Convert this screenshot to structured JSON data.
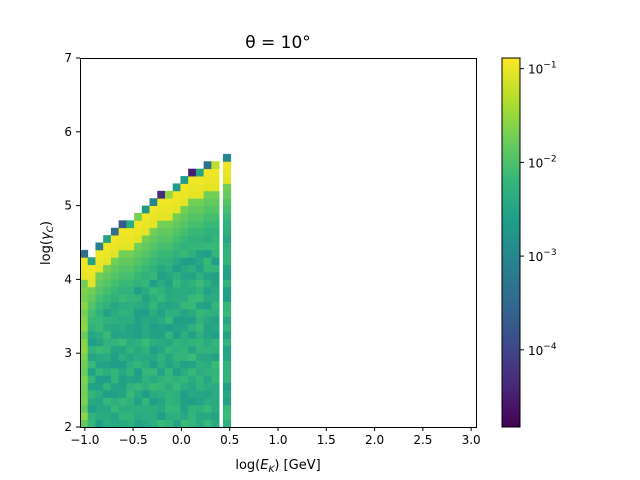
{
  "chart_data": {
    "type": "heatmap",
    "title": "θ = 10°",
    "xlabel": "log(E_K) [GeV]",
    "ylabel": "log(γ_C)",
    "xlim": [
      -1.05,
      3.05
    ],
    "ylim": [
      2,
      7
    ],
    "x_ticks": [
      -1.0,
      -0.5,
      0.0,
      0.5,
      1.0,
      1.5,
      2.0,
      2.5,
      3.0
    ],
    "x_tick_labels": [
      "−1.0",
      "−0.5",
      "0.0",
      "0.5",
      "1.0",
      "1.5",
      "2.0",
      "2.5",
      "3.0"
    ],
    "y_ticks": [
      2,
      3,
      4,
      5,
      6,
      7
    ],
    "y_tick_labels": [
      "2",
      "3",
      "4",
      "5",
      "6",
      "7"
    ],
    "colorbar": {
      "scale": "log",
      "vmin": 1.5e-05,
      "vmax": 0.13,
      "ticks": [
        0.0001,
        0.001,
        0.01,
        0.1
      ],
      "tick_labels": [
        "10",
        "10",
        "10",
        "10"
      ],
      "tick_exponents": [
        "−4",
        "−3",
        "−2",
        "−1"
      ],
      "colormap": "viridis"
    },
    "grid": false,
    "cells": {
      "x_start": -1.05,
      "x_end": 0.55,
      "x_step": 0.08,
      "y_step": 0.1,
      "y_bottom": 2.0,
      "columns": [
        {
          "x": -1.01,
          "top": 4.35,
          "top_value": 0.0004
        },
        {
          "x": -0.93,
          "top": 4.25,
          "top_value": 0.003
        },
        {
          "x": -0.85,
          "top": 4.45,
          "top_value": 0.0008
        },
        {
          "x": -0.77,
          "top": 4.55,
          "top_value": 0.003
        },
        {
          "x": -0.69,
          "top": 4.65,
          "top_value": 0.0004
        },
        {
          "x": -0.61,
          "top": 4.75,
          "top_value": 0.0002
        },
        {
          "x": -0.53,
          "top": 4.75,
          "top_value": 0.004
        },
        {
          "x": -0.45,
          "top": 4.85,
          "top_value": 0.02
        },
        {
          "x": -0.37,
          "top": 4.95,
          "top_value": 0.002
        },
        {
          "x": -0.29,
          "top": 5.05,
          "top_value": 0.001
        },
        {
          "x": -0.21,
          "top": 5.15,
          "top_value": 5e-05
        },
        {
          "x": -0.13,
          "top": 5.15,
          "top_value": 0.03
        },
        {
          "x": -0.05,
          "top": 5.25,
          "top_value": 0.002
        },
        {
          "x": 0.03,
          "top": 5.35,
          "top_value": 0.002
        },
        {
          "x": 0.11,
          "top": 5.45,
          "top_value": 3e-05
        },
        {
          "x": 0.19,
          "top": 5.45,
          "top_value": 0.003
        },
        {
          "x": 0.27,
          "top": 5.55,
          "top_value": 0.0004
        },
        {
          "x": 0.35,
          "top": 5.55,
          "top_value": 0.05
        },
        {
          "x": 0.47,
          "top": 5.65,
          "top_value": 0.001
        }
      ],
      "bright_band_value": 0.12,
      "bulk_value": 0.004,
      "left_column_value": 0.02
    }
  }
}
